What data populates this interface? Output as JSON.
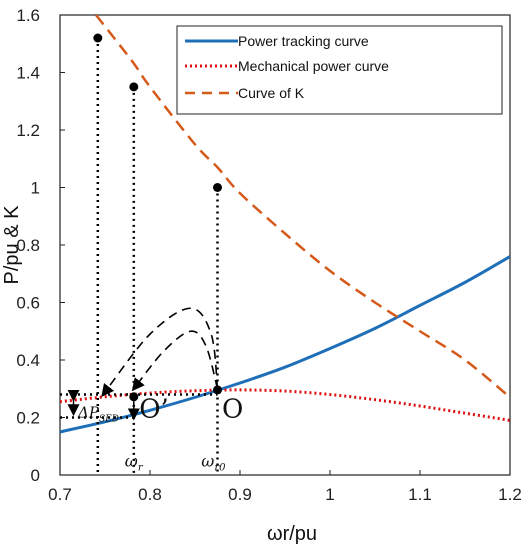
{
  "chart_data": {
    "type": "line",
    "xlabel": "ωr/pu",
    "ylabel": "P/pu & K",
    "xlim": [
      0.7,
      1.2
    ],
    "ylim": [
      0,
      1.6
    ],
    "xticks": [
      "0.7",
      "0.8",
      "0.9",
      "1",
      "1.1",
      "1.2"
    ],
    "yticks": [
      "0",
      "0.2",
      "0.4",
      "0.6",
      "0.8",
      "1",
      "1.2",
      "1.4",
      "1.6"
    ],
    "legend_position": "top-right",
    "grid": false,
    "series": [
      {
        "name": "Power tracking curve",
        "style": "solid",
        "color": "#1f6fb8",
        "x": [
          0.7,
          0.75,
          0.8,
          0.85,
          0.9,
          0.95,
          1.0,
          1.05,
          1.1,
          1.15,
          1.2
        ],
        "y": [
          0.15,
          0.185,
          0.225,
          0.27,
          0.32,
          0.375,
          0.44,
          0.51,
          0.59,
          0.67,
          0.76
        ]
      },
      {
        "name": "Mechanical power curve",
        "style": "dotted",
        "color": "#e01010",
        "x": [
          0.7,
          0.75,
          0.8,
          0.85,
          0.9,
          0.95,
          1.0,
          1.05,
          1.1,
          1.15,
          1.2
        ],
        "y": [
          0.255,
          0.272,
          0.285,
          0.293,
          0.296,
          0.292,
          0.28,
          0.262,
          0.24,
          0.215,
          0.19
        ]
      },
      {
        "name": "Curve of K",
        "style": "dashed",
        "color": "#d55a1a",
        "x": [
          0.74,
          0.78,
          0.8,
          0.85,
          0.875,
          0.9,
          0.95,
          1.0,
          1.05,
          1.1,
          1.15,
          1.2
        ],
        "y": [
          1.6,
          1.44,
          1.35,
          1.15,
          1.07,
          0.98,
          0.84,
          0.71,
          0.6,
          0.5,
          0.4,
          0.27
        ]
      }
    ],
    "markers": [
      {
        "x": 0.742,
        "y": 1.52
      },
      {
        "x": 0.782,
        "y": 1.35
      },
      {
        "x": 0.875,
        "y": 1.0
      },
      {
        "x": 0.782,
        "y": 0.272
      },
      {
        "x": 0.875,
        "y": 0.296
      }
    ],
    "annotations": {
      "point_O": "O",
      "point_O_prime": "O’",
      "delta_label": "ΔP",
      "delta_subscript": "SED",
      "omega_r": "ω",
      "omega_r_sub": "r",
      "omega_r0": "ω",
      "omega_r0_sub": "r0"
    }
  }
}
